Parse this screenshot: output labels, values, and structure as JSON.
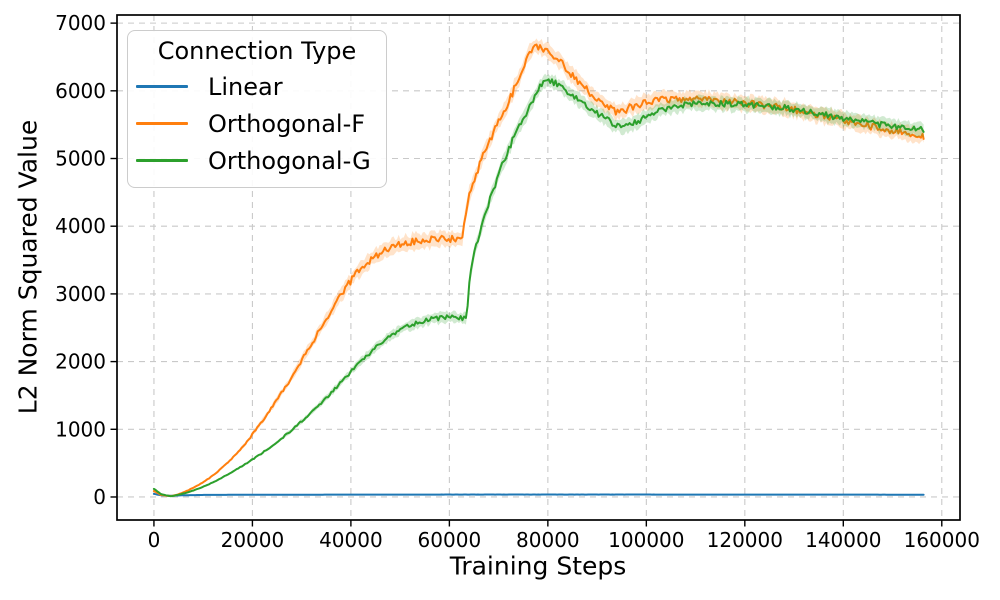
{
  "chart_data": {
    "type": "line",
    "title": "",
    "xlabel": "Training Steps",
    "ylabel": "L2 Norm Squared Value",
    "xlim": [
      -7500,
      163700
    ],
    "ylim": [
      -340,
      7120
    ],
    "xticks": [
      0,
      20000,
      40000,
      60000,
      80000,
      100000,
      120000,
      140000,
      160000
    ],
    "yticks": [
      0,
      1000,
      2000,
      3000,
      4000,
      5000,
      6000,
      7000
    ],
    "grid": {
      "show": true,
      "color": "#c9c9c9",
      "dash": "6,5",
      "width": 1.1
    },
    "axes": {
      "spine_color": "#000000",
      "spine_width": 1.7,
      "tick_length": 6.5,
      "tick_width": 1.4
    },
    "legend": {
      "title": "Connection Type",
      "position": "upper-left"
    },
    "legend_entries": [
      "Linear",
      "Orthogonal-F",
      "Orthogonal-G"
    ],
    "series": [
      {
        "name": "Linear",
        "color": "#1f77b4",
        "line_width": 2,
        "noise_amp": 2,
        "band": 14,
        "band_opacity": 0.3,
        "points": [
          [
            0,
            45
          ],
          [
            1500,
            25
          ],
          [
            3500,
            18
          ],
          [
            6000,
            26
          ],
          [
            10000,
            30
          ],
          [
            20000,
            33
          ],
          [
            40000,
            35
          ],
          [
            60000,
            36
          ],
          [
            80000,
            36
          ],
          [
            100000,
            36
          ],
          [
            120000,
            35
          ],
          [
            140000,
            35
          ],
          [
            156300,
            34
          ]
        ]
      },
      {
        "name": "Orthogonal-F",
        "color": "#ff7f0e",
        "line_width": 2,
        "noise_amp": 55,
        "band": 112,
        "band_opacity": 0.22,
        "points": [
          [
            0,
            85
          ],
          [
            1500,
            30
          ],
          [
            3500,
            12
          ],
          [
            5000,
            40
          ],
          [
            7000,
            100
          ],
          [
            9000,
            175
          ],
          [
            11000,
            265
          ],
          [
            13000,
            375
          ],
          [
            15000,
            505
          ],
          [
            17000,
            655
          ],
          [
            19000,
            825
          ],
          [
            21000,
            1025
          ],
          [
            23000,
            1225
          ],
          [
            25000,
            1435
          ],
          [
            27000,
            1660
          ],
          [
            29000,
            1895
          ],
          [
            31000,
            2135
          ],
          [
            33000,
            2385
          ],
          [
            35000,
            2635
          ],
          [
            37000,
            2875
          ],
          [
            39000,
            3095
          ],
          [
            41000,
            3285
          ],
          [
            43000,
            3450
          ],
          [
            45000,
            3570
          ],
          [
            47000,
            3645
          ],
          [
            49000,
            3705
          ],
          [
            51000,
            3745
          ],
          [
            53000,
            3770
          ],
          [
            55000,
            3790
          ],
          [
            57000,
            3800
          ],
          [
            59000,
            3810
          ],
          [
            61000,
            3815
          ],
          [
            62600,
            3785
          ],
          [
            63200,
            4180
          ],
          [
            64200,
            4500
          ],
          [
            65700,
            4820
          ],
          [
            67200,
            5100
          ],
          [
            68700,
            5350
          ],
          [
            70200,
            5580
          ],
          [
            71700,
            5800
          ],
          [
            73200,
            6030
          ],
          [
            74500,
            6250
          ],
          [
            75500,
            6460
          ],
          [
            76500,
            6610
          ],
          [
            77500,
            6650
          ],
          [
            79000,
            6630
          ],
          [
            80000,
            6590
          ],
          [
            81500,
            6500
          ],
          [
            83000,
            6390
          ],
          [
            85000,
            6235
          ],
          [
            87000,
            6080
          ],
          [
            89000,
            5940
          ],
          [
            91000,
            5820
          ],
          [
            92500,
            5745
          ],
          [
            93800,
            5680
          ],
          [
            95000,
            5695
          ],
          [
            96500,
            5745
          ],
          [
            98000,
            5795
          ],
          [
            100000,
            5835
          ],
          [
            102000,
            5865
          ],
          [
            104000,
            5880
          ],
          [
            106000,
            5885
          ],
          [
            108000,
            5880
          ],
          [
            110000,
            5872
          ],
          [
            112000,
            5865
          ],
          [
            114000,
            5855
          ],
          [
            116000,
            5842
          ],
          [
            118000,
            5826
          ],
          [
            120000,
            5812
          ],
          [
            122000,
            5800
          ],
          [
            124000,
            5786
          ],
          [
            126000,
            5766
          ],
          [
            128000,
            5742
          ],
          [
            130000,
            5716
          ],
          [
            132000,
            5690
          ],
          [
            134000,
            5662
          ],
          [
            136000,
            5632
          ],
          [
            138000,
            5598
          ],
          [
            140000,
            5562
          ],
          [
            142000,
            5532
          ],
          [
            144000,
            5502
          ],
          [
            146000,
            5472
          ],
          [
            148000,
            5442
          ],
          [
            150000,
            5416
          ],
          [
            152000,
            5392
          ],
          [
            154000,
            5370
          ],
          [
            156300,
            5345
          ]
        ]
      },
      {
        "name": "Orthogonal-G",
        "color": "#2ca02c",
        "line_width": 2,
        "noise_amp": 45,
        "band": 100,
        "band_opacity": 0.22,
        "points": [
          [
            0,
            120
          ],
          [
            1500,
            40
          ],
          [
            3500,
            12
          ],
          [
            5000,
            32
          ],
          [
            7000,
            72
          ],
          [
            9000,
            122
          ],
          [
            11000,
            182
          ],
          [
            13000,
            252
          ],
          [
            15000,
            332
          ],
          [
            17000,
            417
          ],
          [
            19000,
            507
          ],
          [
            21000,
            602
          ],
          [
            23000,
            702
          ],
          [
            25000,
            812
          ],
          [
            27000,
            927
          ],
          [
            29000,
            1052
          ],
          [
            31000,
            1182
          ],
          [
            33000,
            1322
          ],
          [
            35000,
            1467
          ],
          [
            37000,
            1617
          ],
          [
            39000,
            1772
          ],
          [
            41000,
            1927
          ],
          [
            43000,
            2072
          ],
          [
            45000,
            2202
          ],
          [
            47000,
            2322
          ],
          [
            49000,
            2422
          ],
          [
            51000,
            2502
          ],
          [
            53000,
            2562
          ],
          [
            55000,
            2607
          ],
          [
            57000,
            2637
          ],
          [
            59000,
            2652
          ],
          [
            61000,
            2657
          ],
          [
            63000,
            2642
          ],
          [
            63500,
            2625
          ],
          [
            64100,
            3200
          ],
          [
            65200,
            3650
          ],
          [
            66700,
            4030
          ],
          [
            68200,
            4380
          ],
          [
            69700,
            4700
          ],
          [
            71200,
            4990
          ],
          [
            72700,
            5250
          ],
          [
            74200,
            5480
          ],
          [
            75700,
            5680
          ],
          [
            77200,
            5900
          ],
          [
            78200,
            6040
          ],
          [
            79200,
            6125
          ],
          [
            80200,
            6145
          ],
          [
            81200,
            6125
          ],
          [
            82700,
            6055
          ],
          [
            84700,
            5955
          ],
          [
            86700,
            5845
          ],
          [
            88700,
            5735
          ],
          [
            90700,
            5635
          ],
          [
            92200,
            5565
          ],
          [
            93700,
            5495
          ],
          [
            94900,
            5458
          ],
          [
            96100,
            5472
          ],
          [
            97600,
            5522
          ],
          [
            99100,
            5582
          ],
          [
            101000,
            5650
          ],
          [
            103000,
            5712
          ],
          [
            105000,
            5762
          ],
          [
            107000,
            5792
          ],
          [
            109000,
            5807
          ],
          [
            111000,
            5817
          ],
          [
            113000,
            5817
          ],
          [
            115000,
            5812
          ],
          [
            117000,
            5807
          ],
          [
            119000,
            5797
          ],
          [
            121000,
            5792
          ],
          [
            123000,
            5782
          ],
          [
            125000,
            5772
          ],
          [
            127000,
            5757
          ],
          [
            129000,
            5737
          ],
          [
            131000,
            5712
          ],
          [
            133000,
            5687
          ],
          [
            135000,
            5662
          ],
          [
            137000,
            5637
          ],
          [
            139000,
            5612
          ],
          [
            141000,
            5582
          ],
          [
            143000,
            5557
          ],
          [
            145000,
            5532
          ],
          [
            147000,
            5507
          ],
          [
            149000,
            5487
          ],
          [
            151000,
            5467
          ],
          [
            153000,
            5447
          ],
          [
            156300,
            5420
          ]
        ]
      }
    ]
  }
}
